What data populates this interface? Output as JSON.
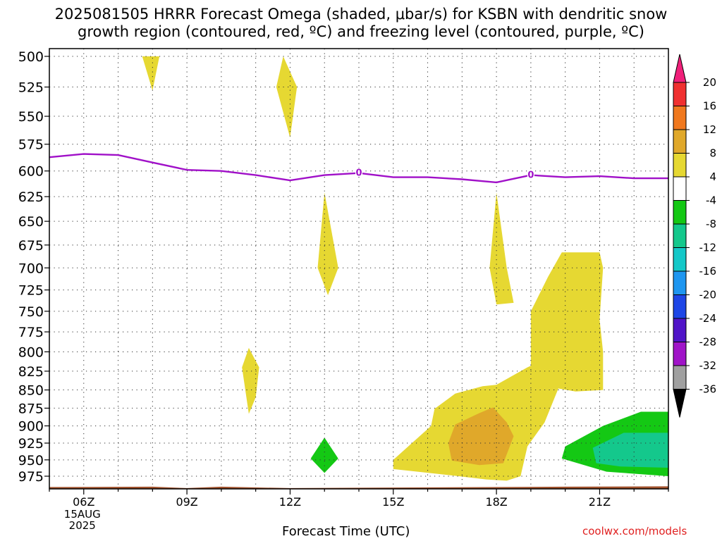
{
  "title_line1": "2025081505 HRRR Forecast Omega (shaded, μbar/s) for KSBN with dendritic snow",
  "title_line2": "growth region (contoured, red, ºC) and freezing level (contoured, purple, ºC)",
  "credit": "coolwx.com/models",
  "chart_data": {
    "type": "heatmap",
    "title": "2025081505 HRRR Forecast Omega (shaded, μbar/s) for KSBN with dendritic snow growth region (contoured, red, ºC) and freezing level (contoured, purple, ºC)",
    "xlabel": "Forecast Time (UTC)",
    "ylabel": "",
    "x_hour_range": [
      5,
      23
    ],
    "y_range_hpa": [
      500,
      1000
    ],
    "x_ticks": [
      {
        "hour": 6,
        "label": "06Z",
        "sub": [
          "15AUG",
          "2025"
        ]
      },
      {
        "hour": 9,
        "label": "09Z"
      },
      {
        "hour": 12,
        "label": "12Z"
      },
      {
        "hour": 15,
        "label": "15Z"
      },
      {
        "hour": 18,
        "label": "18Z"
      },
      {
        "hour": 21,
        "label": "21Z"
      }
    ],
    "y_ticks": [
      500,
      525,
      550,
      575,
      600,
      625,
      650,
      675,
      700,
      725,
      750,
      775,
      800,
      825,
      850,
      875,
      900,
      925,
      950,
      975
    ],
    "grid": true,
    "colorbar": {
      "labels": [
        "20",
        "16",
        "12",
        "8",
        "4",
        "-4",
        "-8",
        "-12",
        "-16",
        "-20",
        "-24",
        "-28",
        "-32",
        "-36"
      ],
      "colors": [
        "#f0207a",
        "#f03030",
        "#f0781e",
        "#e0a82a",
        "#e6d832",
        "#ffffff",
        "#14c814",
        "#14c88c",
        "#14c8c8",
        "#1e96f0",
        "#1e46e6",
        "#5014c8",
        "#a014c8",
        "#a0a0a0"
      ],
      "bottom_color": "#000000"
    },
    "freezing_level": {
      "color": "#a010c8",
      "label": "0",
      "label_points": [
        [
          14.0,
          602
        ],
        [
          19.0,
          604
        ]
      ],
      "points": [
        [
          5.0,
          587
        ],
        [
          6.0,
          584
        ],
        [
          7.0,
          585
        ],
        [
          8.0,
          592
        ],
        [
          9.0,
          599
        ],
        [
          10.0,
          600
        ],
        [
          11.0,
          604
        ],
        [
          12.0,
          609
        ],
        [
          13.0,
          604
        ],
        [
          14.0,
          602
        ],
        [
          15.0,
          606
        ],
        [
          16.0,
          606
        ],
        [
          17.0,
          608
        ],
        [
          18.0,
          611
        ],
        [
          19.0,
          604
        ],
        [
          20.0,
          606
        ],
        [
          21.0,
          605
        ],
        [
          22.0,
          607
        ],
        [
          23.0,
          607
        ]
      ]
    },
    "omega_regions": [
      {
        "level": "4-8",
        "color": "#e6d832",
        "points": [
          [
            7.7,
            500
          ],
          [
            8.2,
            500
          ],
          [
            8.0,
            528
          ]
        ]
      },
      {
        "level": "4-8",
        "color": "#e6d832",
        "points": [
          [
            11.8,
            500
          ],
          [
            12.2,
            525
          ],
          [
            12.0,
            569
          ],
          [
            11.6,
            525
          ]
        ]
      },
      {
        "level": "4-8",
        "color": "#e6d832",
        "points": [
          [
            13.0,
            621
          ],
          [
            13.4,
            700
          ],
          [
            13.1,
            731
          ],
          [
            12.8,
            700
          ]
        ]
      },
      {
        "level": "4-8",
        "color": "#e6d832",
        "points": [
          [
            18.0,
            621
          ],
          [
            18.3,
            700
          ],
          [
            18.5,
            740
          ],
          [
            18.0,
            742
          ],
          [
            17.8,
            700
          ]
        ]
      },
      {
        "level": "4-8",
        "color": "#e6d832",
        "points": [
          [
            10.8,
            795
          ],
          [
            11.1,
            820
          ],
          [
            11.0,
            860
          ],
          [
            10.8,
            883
          ],
          [
            10.6,
            820
          ]
        ]
      },
      {
        "level": "4-8",
        "color": "#e6d832",
        "points": [
          [
            16.2,
            876
          ],
          [
            16.8,
            855
          ],
          [
            17.6,
            845
          ],
          [
            18.0,
            843
          ],
          [
            18.9,
            820
          ],
          [
            19.0,
            818
          ],
          [
            19.0,
            750
          ],
          [
            19.5,
            710
          ],
          [
            19.9,
            683
          ],
          [
            21.0,
            683
          ],
          [
            21.1,
            700
          ],
          [
            21.0,
            760
          ],
          [
            21.1,
            800
          ],
          [
            21.1,
            850
          ],
          [
            20.3,
            852
          ],
          [
            19.8,
            848
          ],
          [
            19.4,
            895
          ],
          [
            18.9,
            930
          ],
          [
            18.7,
            975
          ],
          [
            18.3,
            982
          ],
          [
            17.7,
            980
          ],
          [
            16.9,
            975
          ],
          [
            15.0,
            964
          ],
          [
            15.0,
            950
          ],
          [
            16.1,
            900
          ]
        ]
      },
      {
        "level": "8-12",
        "color": "#e0a82a",
        "points": [
          [
            16.8,
            898
          ],
          [
            17.5,
            882
          ],
          [
            17.9,
            874
          ],
          [
            18.3,
            895
          ],
          [
            18.5,
            915
          ],
          [
            18.2,
            955
          ],
          [
            17.5,
            958
          ],
          [
            16.7,
            951
          ],
          [
            16.6,
            925
          ]
        ]
      },
      {
        "level": "-8--4",
        "color": "#14c814",
        "points": [
          [
            13.0,
            917
          ],
          [
            13.4,
            948
          ],
          [
            13.0,
            970
          ],
          [
            12.6,
            948
          ]
        ]
      },
      {
        "level": "-8--4",
        "color": "#14c814",
        "points": [
          [
            21.1,
            900
          ],
          [
            22.2,
            880
          ],
          [
            23.0,
            880
          ],
          [
            23.0,
            975
          ],
          [
            21.2,
            968
          ],
          [
            19.9,
            948
          ],
          [
            20.0,
            930
          ]
        ]
      },
      {
        "level": "-12--8",
        "color": "#14c88c",
        "points": [
          [
            20.8,
            932
          ],
          [
            21.7,
            910
          ],
          [
            23.0,
            910
          ],
          [
            23.0,
            962
          ],
          [
            21.6,
            960
          ],
          [
            20.9,
            955
          ]
        ]
      }
    ],
    "surface": {
      "color": "#a0522d",
      "top_left_hpa": 992,
      "top_hpa": 992
    }
  }
}
